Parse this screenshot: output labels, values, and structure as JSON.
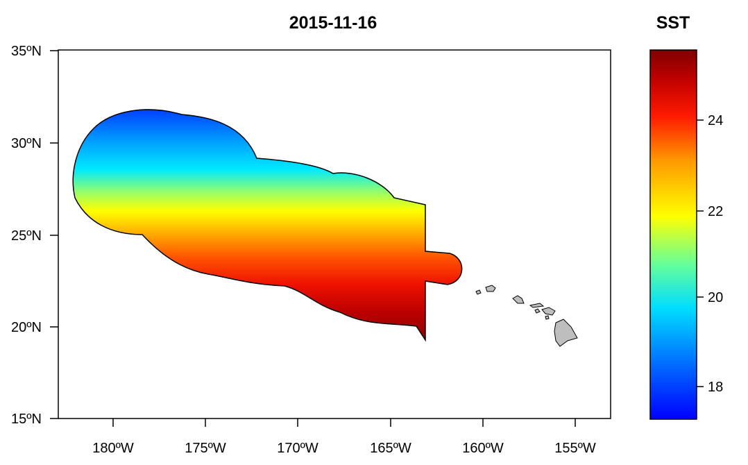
{
  "title": "2015-11-16",
  "legend": {
    "title": "SST",
    "ticks": [
      "24",
      "22",
      "20",
      "18"
    ],
    "min": 17.2,
    "max": 25.7
  },
  "axes": {
    "y_ticks": [
      "35ºN",
      "30ºN",
      "25ºN",
      "20ºN",
      "15ºN"
    ],
    "x_ticks": [
      "180ºW",
      "175ºW",
      "170ºW",
      "165ºW",
      "160ºW",
      "155ºW"
    ]
  },
  "colors": {
    "ramp": [
      "#0000ff",
      "#0070ff",
      "#00ddff",
      "#66ff99",
      "#ffff00",
      "#ff9900",
      "#ff1a00",
      "#b00000",
      "#7f0000"
    ],
    "land": "#bebebe"
  }
}
